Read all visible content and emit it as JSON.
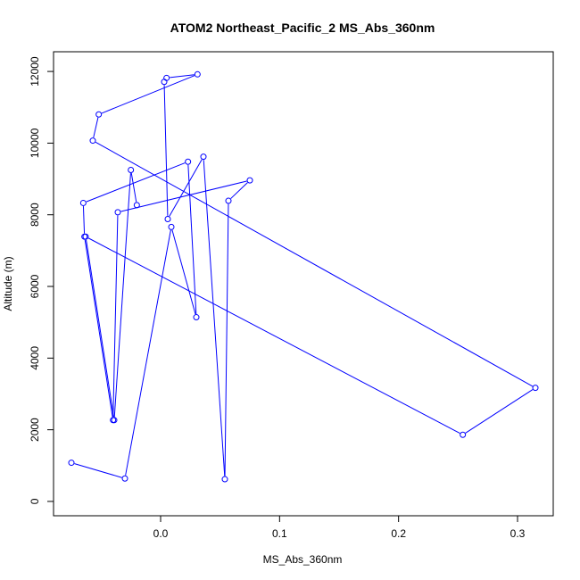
{
  "chart_data": {
    "type": "line",
    "title": "ATOM2 Northeast_Pacific_2 MS_Abs_360nm",
    "xlabel": "MS_Abs_360nm",
    "ylabel": "Altitude (m)",
    "xlim": [
      -0.09,
      0.33
    ],
    "ylim": [
      -400,
      12550
    ],
    "x_ticks": [
      0.0,
      0.1,
      0.2,
      0.3
    ],
    "x_tick_labels": [
      "0.0",
      "0.1",
      "0.2",
      "0.3"
    ],
    "y_ticks": [
      0,
      2000,
      4000,
      6000,
      8000,
      10000,
      12000
    ],
    "y_tick_labels": [
      "0",
      "2000",
      "4000",
      "6000",
      "8000",
      "10000",
      "12000"
    ],
    "grid": false,
    "legend": "none",
    "marker": "open-circle",
    "color": "#0000ff",
    "series": [
      {
        "x": [
          -0.075,
          -0.03,
          0.009,
          0.03,
          0.023,
          -0.065,
          -0.064,
          -0.04,
          -0.036,
          0.075,
          0.057,
          0.054,
          0.036,
          0.006,
          0.003,
          0.005,
          0.031,
          -0.052,
          -0.057,
          0.315,
          0.254,
          -0.063,
          -0.039,
          -0.025,
          -0.02
        ],
        "y": [
          1080,
          640,
          7660,
          5140,
          9480,
          8330,
          7390,
          2270,
          8070,
          8960,
          8390,
          620,
          9620,
          7880,
          11710,
          11820,
          11920,
          10800,
          10070,
          3170,
          1860,
          7390,
          2270,
          9250,
          8270
        ]
      }
    ]
  }
}
